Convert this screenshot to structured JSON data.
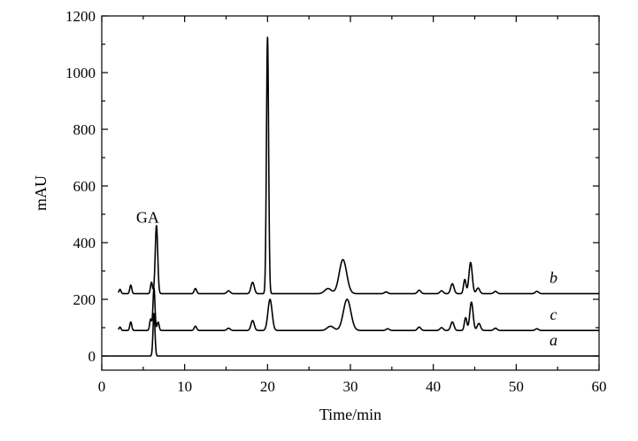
{
  "chart_data": {
    "type": "line",
    "xlabel": "Time/min",
    "ylabel": "mAU",
    "xlim": [
      0,
      60
    ],
    "ylim": [
      -50,
      1200
    ],
    "x_ticks": [
      0,
      10,
      20,
      30,
      40,
      50,
      60
    ],
    "y_ticks": [
      0,
      200,
      400,
      600,
      800,
      1000,
      1200
    ],
    "grid": false,
    "annotations": [
      {
        "text": "GA",
        "x": 6.5,
        "y": 470
      }
    ],
    "series": [
      {
        "name": "b",
        "baseline": 220,
        "label_x": 54.5,
        "peaks": [
          {
            "x": 2.2,
            "h": 15,
            "w": 0.12
          },
          {
            "x": 3.5,
            "h": 30,
            "w": 0.12
          },
          {
            "x": 6.0,
            "h": 40,
            "w": 0.12
          },
          {
            "x": 6.6,
            "h": 240,
            "w": 0.15
          },
          {
            "x": 11.3,
            "h": 18,
            "w": 0.15
          },
          {
            "x": 15.3,
            "h": 10,
            "w": 0.2
          },
          {
            "x": 18.2,
            "h": 40,
            "w": 0.2
          },
          {
            "x": 20.0,
            "h": 905,
            "w": 0.13
          },
          {
            "x": 27.3,
            "h": 18,
            "w": 0.4
          },
          {
            "x": 29.1,
            "h": 120,
            "w": 0.45
          },
          {
            "x": 34.3,
            "h": 6,
            "w": 0.2
          },
          {
            "x": 38.3,
            "h": 12,
            "w": 0.2
          },
          {
            "x": 41.0,
            "h": 10,
            "w": 0.2
          },
          {
            "x": 42.3,
            "h": 35,
            "w": 0.2
          },
          {
            "x": 43.8,
            "h": 50,
            "w": 0.15
          },
          {
            "x": 44.5,
            "h": 110,
            "w": 0.2
          },
          {
            "x": 45.4,
            "h": 20,
            "w": 0.2
          },
          {
            "x": 47.5,
            "h": 8,
            "w": 0.2
          },
          {
            "x": 52.5,
            "h": 8,
            "w": 0.2
          }
        ]
      },
      {
        "name": "c",
        "baseline": 90,
        "label_x": 54.5,
        "peaks": [
          {
            "x": 2.2,
            "h": 12,
            "w": 0.12
          },
          {
            "x": 3.5,
            "h": 30,
            "w": 0.12
          },
          {
            "x": 5.9,
            "h": 40,
            "w": 0.12
          },
          {
            "x": 6.3,
            "h": 150,
            "w": 0.12
          },
          {
            "x": 6.8,
            "h": 30,
            "w": 0.12
          },
          {
            "x": 11.3,
            "h": 15,
            "w": 0.15
          },
          {
            "x": 15.3,
            "h": 8,
            "w": 0.2
          },
          {
            "x": 18.2,
            "h": 35,
            "w": 0.2
          },
          {
            "x": 20.3,
            "h": 110,
            "w": 0.25
          },
          {
            "x": 27.6,
            "h": 15,
            "w": 0.4
          },
          {
            "x": 29.6,
            "h": 110,
            "w": 0.45
          },
          {
            "x": 34.5,
            "h": 6,
            "w": 0.2
          },
          {
            "x": 38.3,
            "h": 12,
            "w": 0.2
          },
          {
            "x": 41.0,
            "h": 10,
            "w": 0.2
          },
          {
            "x": 42.3,
            "h": 30,
            "w": 0.2
          },
          {
            "x": 43.9,
            "h": 45,
            "w": 0.15
          },
          {
            "x": 44.6,
            "h": 100,
            "w": 0.2
          },
          {
            "x": 45.5,
            "h": 25,
            "w": 0.2
          },
          {
            "x": 47.5,
            "h": 8,
            "w": 0.2
          },
          {
            "x": 52.5,
            "h": 6,
            "w": 0.2
          }
        ]
      },
      {
        "name": "a",
        "baseline": 0,
        "label_x": 54.5,
        "peaks": [
          {
            "x": 6.3,
            "h": 150,
            "w": 0.12
          }
        ]
      }
    ]
  }
}
